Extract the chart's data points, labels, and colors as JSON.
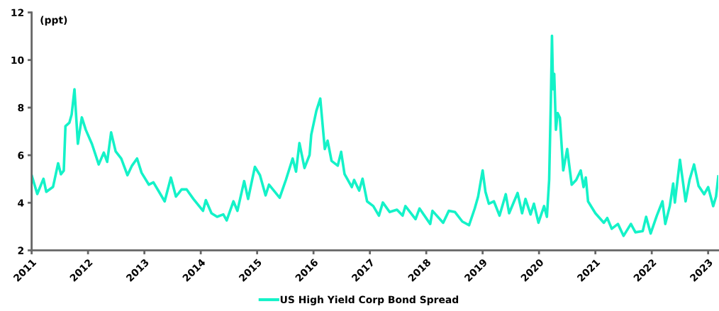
{
  "chart_data": {
    "type": "line",
    "ylabel": "(ppt)",
    "x": [
      2011.0,
      2011.1,
      2011.21,
      2011.26,
      2011.38,
      2011.47,
      2011.52,
      2011.57,
      2011.6,
      2011.67,
      2011.71,
      2011.76,
      2011.82,
      2011.89,
      2011.96,
      2012.07,
      2012.19,
      2012.28,
      2012.34,
      2012.41,
      2012.49,
      2012.59,
      2012.7,
      2012.78,
      2012.87,
      2012.95,
      2013.08,
      2013.16,
      2013.26,
      2013.36,
      2013.47,
      2013.56,
      2013.66,
      2013.75,
      2013.87,
      2014.04,
      2014.09,
      2014.19,
      2014.29,
      2014.4,
      2014.46,
      2014.58,
      2014.65,
      2014.77,
      2014.84,
      2014.96,
      2015.05,
      2015.15,
      2015.21,
      2015.4,
      2015.51,
      2015.63,
      2015.69,
      2015.75,
      2015.84,
      2015.93,
      2015.96,
      2016.05,
      2016.12,
      2016.2,
      2016.25,
      2016.32,
      2016.43,
      2016.49,
      2016.55,
      2016.68,
      2016.72,
      2016.81,
      2016.87,
      2016.95,
      2017.06,
      2017.16,
      2017.23,
      2017.35,
      2017.48,
      2017.58,
      2017.63,
      2017.81,
      2017.88,
      2018.07,
      2018.11,
      2018.3,
      2018.4,
      2018.51,
      2018.64,
      2018.76,
      2018.86,
      2018.92,
      2019.0,
      2019.05,
      2019.11,
      2019.2,
      2019.3,
      2019.41,
      2019.47,
      2019.62,
      2019.7,
      2019.76,
      2019.85,
      2019.91,
      2019.99,
      2020.09,
      2020.14,
      2020.18,
      2020.21,
      2020.23,
      2020.25,
      2020.27,
      2020.3,
      2020.33,
      2020.37,
      2020.43,
      2020.5,
      2020.58,
      2020.66,
      2020.74,
      2020.79,
      2020.83,
      2020.87,
      2021.0,
      2021.15,
      2021.21,
      2021.29,
      2021.4,
      2021.5,
      2021.63,
      2021.71,
      2021.84,
      2021.9,
      2021.98,
      2022.09,
      2022.19,
      2022.24,
      2022.32,
      2022.38,
      2022.41,
      2022.5,
      2022.6,
      2022.67,
      2022.75,
      2022.83,
      2022.93,
      2023.0,
      2023.09,
      2023.14,
      2023.18
    ],
    "series": [
      {
        "name": "US High Yield Corp Bond Spread",
        "color": "#14f2c8",
        "values": [
          5.16,
          4.37,
          5.01,
          4.46,
          4.67,
          5.66,
          5.2,
          5.35,
          7.22,
          7.37,
          7.71,
          8.77,
          6.48,
          7.59,
          7.07,
          6.47,
          5.61,
          6.11,
          5.72,
          6.96,
          6.16,
          5.86,
          5.16,
          5.56,
          5.86,
          5.26,
          4.76,
          4.86,
          4.46,
          4.06,
          5.06,
          4.26,
          4.56,
          4.56,
          4.16,
          3.66,
          4.11,
          3.56,
          3.41,
          3.51,
          3.26,
          4.06,
          3.66,
          4.91,
          4.16,
          5.51,
          5.16,
          4.31,
          4.76,
          4.21,
          4.96,
          5.86,
          5.31,
          6.51,
          5.46,
          6.01,
          6.86,
          7.86,
          8.38,
          6.26,
          6.61,
          5.76,
          5.56,
          6.14,
          5.21,
          4.66,
          4.96,
          4.51,
          5.01,
          4.06,
          3.86,
          3.46,
          4.01,
          3.61,
          3.71,
          3.46,
          3.86,
          3.31,
          3.76,
          3.11,
          3.66,
          3.16,
          3.66,
          3.61,
          3.21,
          3.06,
          3.76,
          4.26,
          5.36,
          4.46,
          3.96,
          4.06,
          3.46,
          4.36,
          3.56,
          4.41,
          3.56,
          4.16,
          3.51,
          3.96,
          3.16,
          3.86,
          3.41,
          4.96,
          8.27,
          11.02,
          8.77,
          9.42,
          7.07,
          7.77,
          7.57,
          5.36,
          6.26,
          4.76,
          4.96,
          5.36,
          4.66,
          5.06,
          4.06,
          3.56,
          3.16,
          3.36,
          2.91,
          3.11,
          2.61,
          3.11,
          2.76,
          2.81,
          3.41,
          2.71,
          3.46,
          4.06,
          3.11,
          3.86,
          4.81,
          4.01,
          5.81,
          4.06,
          4.96,
          5.61,
          4.71,
          4.36,
          4.66,
          3.86,
          4.26,
          5.11
        ]
      }
    ],
    "xlim": [
      2011,
      2023.18
    ],
    "xticks": [
      2011,
      2012,
      2013,
      2014,
      2015,
      2016,
      2017,
      2018,
      2019,
      2020,
      2021,
      2022,
      2023
    ],
    "ylim": [
      2,
      12
    ],
    "yticks": [
      2,
      4,
      6,
      8,
      10,
      12
    ],
    "legend": "bottom",
    "grid": false
  }
}
